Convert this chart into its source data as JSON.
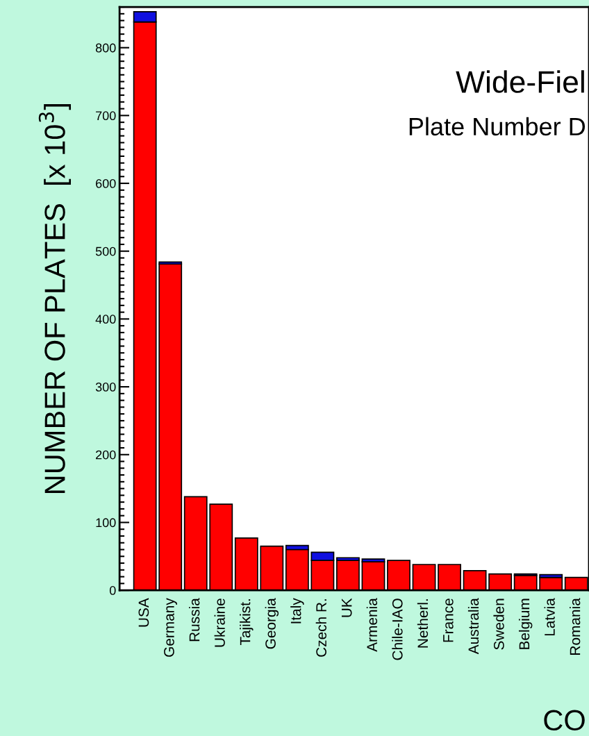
{
  "chart_data": {
    "type": "bar",
    "stacked": true,
    "title": "Wide-Fiel",
    "subtitle": "Plate Number D",
    "xlabel": "CO",
    "ylabel": "NUMBER OF PLATES  [x 10$^{3}$]",
    "categories": [
      "USA",
      "Germany",
      "Russia",
      "Ukraine",
      "Tajikist.",
      "Georgia",
      "Italy",
      "Czech R.",
      "UK",
      "Armenia",
      "Chile-IAO",
      "Netherl.",
      "France",
      "Australia",
      "Sweden",
      "Belgium",
      "Latvia",
      "Romania"
    ],
    "series": [
      {
        "color": "#ff0000",
        "values": [
          838,
          481,
          138,
          127,
          77,
          65,
          60,
          44,
          44,
          42,
          44,
          38,
          38,
          29,
          24,
          22,
          19,
          19
        ]
      },
      {
        "color": "#1010e0",
        "values": [
          15,
          3,
          null,
          null,
          null,
          null,
          6,
          12,
          4,
          4,
          null,
          null,
          null,
          null,
          null,
          2,
          4,
          null
        ]
      }
    ],
    "ylim": [
      0,
      860
    ],
    "yticks": [
      0,
      100,
      200,
      300,
      400,
      500,
      600,
      700,
      800
    ],
    "grid": false,
    "legend": false
  }
}
